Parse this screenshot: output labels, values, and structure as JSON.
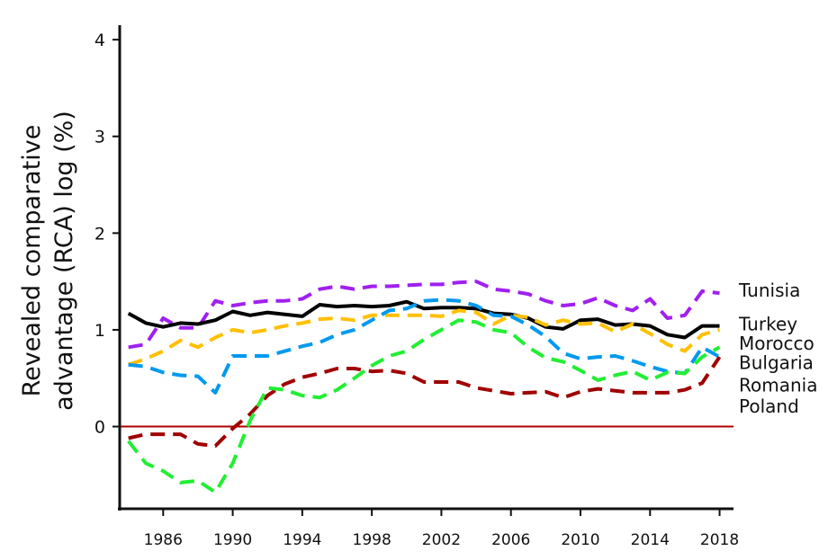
{
  "chart_data": {
    "type": "line",
    "ylabel_lines": [
      "Revealed comparative",
      "advantage (RCA) log (%)"
    ],
    "xlim": [
      1983.5,
      2018.8
    ],
    "ylim": [
      -0.85,
      4.15
    ],
    "x_ticks": [
      1986,
      1990,
      1994,
      1998,
      2002,
      2006,
      2010,
      2014,
      2018
    ],
    "x_tick_labels": [
      "1986",
      "1990",
      "1994",
      "1998",
      "2002",
      "2006",
      "2010",
      "2014",
      "2018"
    ],
    "y_ticks": [
      0,
      1,
      2,
      3,
      4
    ],
    "y_tick_labels": [
      "0",
      "1",
      "2",
      "3",
      "4"
    ],
    "x": [
      1984,
      1985,
      1986,
      1987,
      1988,
      1989,
      1990,
      1991,
      1992,
      1993,
      1994,
      1995,
      1996,
      1997,
      1998,
      1999,
      2000,
      2001,
      2002,
      2003,
      2004,
      2005,
      2006,
      2007,
      2008,
      2009,
      2010,
      2011,
      2012,
      2013,
      2014,
      2015,
      2016,
      2017,
      2018
    ],
    "reference_line": {
      "y": 0,
      "color": "#b00000"
    },
    "grid": false,
    "legend_placement": "right, end of lines",
    "series": [
      {
        "name": "Tunisia",
        "color": "#a020f0",
        "dash": "dashed",
        "values": [
          0.82,
          0.85,
          1.12,
          1.02,
          1.02,
          1.3,
          1.25,
          1.28,
          1.3,
          1.3,
          1.32,
          1.42,
          1.45,
          1.42,
          1.45,
          1.45,
          1.46,
          1.47,
          1.47,
          1.49,
          1.5,
          1.42,
          1.4,
          1.37,
          1.3,
          1.25,
          1.27,
          1.33,
          1.25,
          1.2,
          1.32,
          1.12,
          1.15,
          1.4,
          1.38
        ],
        "label_y": 1.41
      },
      {
        "name": "Turkey",
        "color": "#000000",
        "dash": "solid",
        "values": [
          1.17,
          1.07,
          1.03,
          1.07,
          1.06,
          1.1,
          1.19,
          1.15,
          1.18,
          1.16,
          1.14,
          1.26,
          1.24,
          1.25,
          1.24,
          1.25,
          1.29,
          1.22,
          1.23,
          1.23,
          1.22,
          1.17,
          1.16,
          1.12,
          1.03,
          1.01,
          1.1,
          1.11,
          1.05,
          1.06,
          1.04,
          0.95,
          0.92,
          1.04,
          1.04
        ],
        "label_y": 1.06
      },
      {
        "name": "Morocco",
        "color": "#ffc000",
        "dash": "dashed",
        "values": [
          0.64,
          0.7,
          0.78,
          0.89,
          0.82,
          0.92,
          1.0,
          0.97,
          1.0,
          1.04,
          1.07,
          1.11,
          1.12,
          1.1,
          1.15,
          1.15,
          1.15,
          1.15,
          1.14,
          1.2,
          1.18,
          1.06,
          1.15,
          1.13,
          1.05,
          1.1,
          1.06,
          1.07,
          0.98,
          1.06,
          0.96,
          0.85,
          0.78,
          0.95,
          1.0
        ],
        "label_y": 0.86
      },
      {
        "name": "Bulgaria",
        "color": "#0099ee",
        "dash": "dashed",
        "values": [
          0.64,
          0.62,
          0.56,
          0.53,
          0.52,
          0.35,
          0.73,
          0.73,
          0.73,
          0.78,
          0.83,
          0.87,
          0.95,
          1.0,
          1.1,
          1.2,
          1.22,
          1.3,
          1.31,
          1.3,
          1.25,
          1.15,
          1.14,
          1.05,
          0.93,
          0.76,
          0.7,
          0.72,
          0.73,
          0.68,
          0.62,
          0.57,
          0.55,
          0.82,
          0.72
        ],
        "label_y": 0.66
      },
      {
        "name": "Romania",
        "color": "#a00000",
        "dash": "dashed",
        "values": [
          -0.12,
          -0.08,
          -0.08,
          -0.08,
          -0.18,
          -0.2,
          -0.02,
          0.13,
          0.32,
          0.44,
          0.51,
          0.55,
          0.6,
          0.6,
          0.57,
          0.58,
          0.55,
          0.46,
          0.46,
          0.46,
          0.4,
          0.37,
          0.34,
          0.35,
          0.36,
          0.3,
          0.36,
          0.39,
          0.37,
          0.35,
          0.35,
          0.35,
          0.38,
          0.45,
          0.72
        ],
        "label_y": 0.43
      },
      {
        "name": "Poland",
        "color": "#22ee33",
        "dash": "dashed",
        "values": [
          -0.15,
          -0.38,
          -0.46,
          -0.58,
          -0.56,
          -0.68,
          -0.38,
          0.06,
          0.4,
          0.38,
          0.32,
          0.3,
          0.38,
          0.5,
          0.63,
          0.73,
          0.78,
          0.9,
          1.0,
          1.1,
          1.08,
          1.0,
          0.97,
          0.82,
          0.71,
          0.67,
          0.58,
          0.48,
          0.53,
          0.57,
          0.48,
          0.56,
          0.55,
          0.72,
          0.82
        ],
        "label_y": 0.21
      }
    ]
  }
}
